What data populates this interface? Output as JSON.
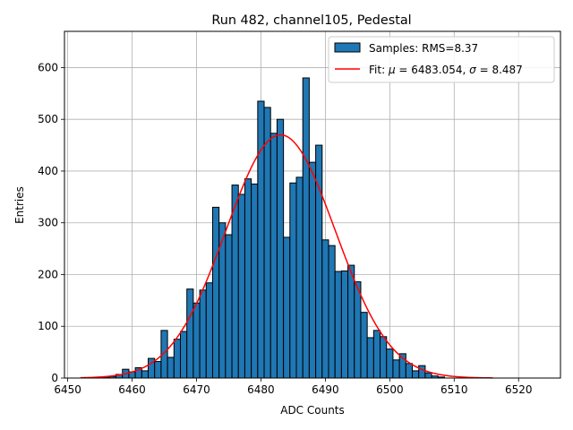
{
  "chart_data": {
    "type": "bar",
    "title": "Run 482, channel105, Pedestal",
    "xlabel": "ADC Counts",
    "ylabel": "Entries",
    "xlim": [
      6449.5,
      6526.5
    ],
    "ylim": [
      0,
      670
    ],
    "xticks": [
      6450,
      6460,
      6470,
      6480,
      6490,
      6500,
      6510,
      6520
    ],
    "yticks": [
      0,
      100,
      200,
      300,
      400,
      500,
      600
    ],
    "grid": true,
    "legend_position": "top-right",
    "colors": {
      "bar_fill": "#1f77b4",
      "bar_edge": "#000000",
      "fit_line": "#ff0000",
      "grid": "#b0b0b0"
    },
    "bin_width": 1,
    "series": [
      {
        "name": "Samples: RMS=8.37",
        "kind": "histogram",
        "x": [
          6456,
          6457,
          6458,
          6459,
          6460,
          6461,
          6462,
          6463,
          6464,
          6465,
          6466,
          6467,
          6468,
          6469,
          6470,
          6471,
          6472,
          6473,
          6474,
          6475,
          6476,
          6477,
          6478,
          6479,
          6480,
          6481,
          6482,
          6483,
          6484,
          6485,
          6486,
          6487,
          6488,
          6489,
          6490,
          6491,
          6492,
          6493,
          6494,
          6495,
          6496,
          6497,
          6498,
          6499,
          6500,
          6501,
          6502,
          6503,
          6504,
          6505,
          6506,
          6507,
          6508
        ],
        "values": [
          2,
          3,
          7,
          17,
          12,
          20,
          14,
          38,
          32,
          92,
          40,
          75,
          90,
          172,
          145,
          170,
          184,
          330,
          300,
          277,
          373,
          355,
          385,
          375,
          535,
          523,
          473,
          500,
          272,
          377,
          388,
          580,
          417,
          450,
          267,
          256,
          206,
          207,
          218,
          186,
          127,
          78,
          92,
          80,
          56,
          35,
          47,
          28,
          14,
          24,
          10,
          4,
          2
        ]
      },
      {
        "name": "Fit: μ = 6483.054, σ = 8.487",
        "kind": "gaussian-fit",
        "mu": 6483.054,
        "sigma": 8.487,
        "amplitude": 470,
        "x_range": [
          6452,
          6516
        ]
      }
    ],
    "legend": {
      "hist_prefix": "Samples: RMS=8.37",
      "fit_prefix": "Fit: ",
      "mu_symbol": "μ",
      "mu_text": " = 6483.054, ",
      "sigma_symbol": "σ",
      "sigma_text": " = 8.487"
    }
  }
}
